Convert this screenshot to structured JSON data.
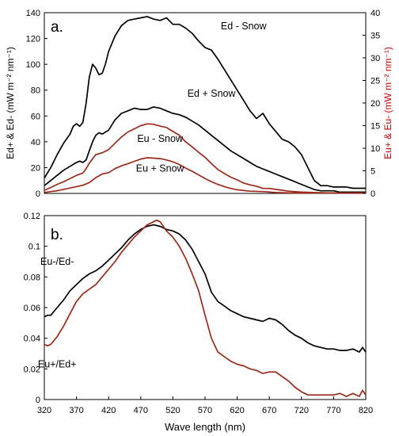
{
  "chart_data": [
    {
      "type": "line",
      "panel_label": "a.",
      "ylabel_left": "Ed+ & Ed- (mW m⁻² nm⁻¹)",
      "ylabel_right": "Eu+ & Eu- (mW m⁻² nm⁻¹)",
      "ylim_left": [
        0,
        140
      ],
      "yticks_left": [
        0,
        20,
        40,
        60,
        80,
        100,
        120,
        140
      ],
      "ylim_right": [
        0,
        40
      ],
      "yticks_right": [
        0,
        5,
        10,
        15,
        20,
        25,
        30,
        35,
        40
      ],
      "xlim": [
        320,
        820
      ],
      "grid": false,
      "series": [
        {
          "name": "Ed - Snow",
          "axis": "left",
          "color": "#000000",
          "x": [
            320,
            330,
            340,
            350,
            360,
            365,
            370,
            375,
            380,
            385,
            390,
            395,
            400,
            405,
            410,
            415,
            420,
            430,
            440,
            450,
            460,
            470,
            480,
            490,
            500,
            510,
            520,
            530,
            540,
            550,
            560,
            570,
            580,
            590,
            600,
            610,
            620,
            630,
            640,
            650,
            660,
            670,
            680,
            690,
            700,
            710,
            720,
            730,
            740,
            750,
            760,
            770,
            780,
            790,
            800,
            810,
            820
          ],
          "y": [
            12,
            20,
            30,
            39,
            46,
            52,
            54,
            52,
            55,
            70,
            90,
            100,
            97,
            92,
            93,
            100,
            110,
            122,
            130,
            134,
            135,
            136,
            137,
            135,
            134,
            136,
            131,
            131,
            128,
            124,
            118,
            113,
            111,
            104,
            96,
            88,
            80,
            72,
            64,
            58,
            62,
            54,
            48,
            42,
            40,
            36,
            30,
            20,
            10,
            6,
            6,
            5,
            5,
            5,
            4,
            4,
            4
          ]
        },
        {
          "name": "Ed + Snow",
          "axis": "left",
          "color": "#000000",
          "x": [
            320,
            330,
            340,
            350,
            360,
            370,
            375,
            380,
            385,
            390,
            395,
            400,
            405,
            410,
            420,
            430,
            440,
            450,
            460,
            470,
            480,
            490,
            500,
            510,
            520,
            530,
            540,
            550,
            560,
            570,
            580,
            590,
            600,
            610,
            620,
            630,
            640,
            650,
            660,
            670,
            680,
            690,
            700,
            710,
            720,
            730,
            740,
            750,
            760,
            770,
            780,
            790,
            800,
            810,
            820
          ],
          "y": [
            6,
            10,
            14,
            18,
            21,
            24,
            25,
            24,
            26,
            33,
            40,
            45,
            47,
            46,
            49,
            57,
            62,
            64,
            66,
            65,
            65,
            67,
            66,
            64,
            62,
            61,
            59,
            56,
            53,
            49,
            45,
            41,
            37,
            33,
            30,
            27,
            24,
            21,
            19,
            17,
            15,
            13,
            11,
            9,
            7,
            5,
            3,
            2,
            2,
            2,
            1,
            1,
            1,
            1,
            1
          ]
        },
        {
          "name": "Eu - Snow",
          "axis": "right",
          "color": "#9c2a1a",
          "x": [
            320,
            330,
            340,
            350,
            360,
            370,
            380,
            385,
            390,
            400,
            410,
            420,
            430,
            440,
            450,
            460,
            470,
            480,
            490,
            500,
            510,
            520,
            530,
            540,
            550,
            560,
            570,
            580,
            590,
            600,
            610,
            620,
            630,
            640,
            650,
            660,
            670,
            680,
            690,
            700,
            720,
            740,
            760,
            780,
            800,
            820
          ],
          "y": [
            0.7,
            1.3,
            2.0,
            2.6,
            3.3,
            4.0,
            4.5,
            5.5,
            6.7,
            8.6,
            9.0,
            9.7,
            11.1,
            12.5,
            13.6,
            14.3,
            15.0,
            15.4,
            15.3,
            14.9,
            14.6,
            13.7,
            12.9,
            11.4,
            10.3,
            9.1,
            8.0,
            6.6,
            5.3,
            4.4,
            3.6,
            3.0,
            2.3,
            1.9,
            1.6,
            1.1,
            1.1,
            0.9,
            0.7,
            0.5,
            0.3,
            0.2,
            0.1,
            0.1,
            0.1,
            0.1
          ]
        },
        {
          "name": "Eu + Snow",
          "axis": "right",
          "color": "#9c2a1a",
          "x": [
            320,
            330,
            340,
            350,
            360,
            370,
            380,
            390,
            400,
            410,
            420,
            430,
            440,
            450,
            460,
            470,
            480,
            490,
            500,
            510,
            520,
            530,
            540,
            550,
            560,
            570,
            580,
            590,
            600,
            610,
            620,
            640,
            660,
            680,
            700,
            720,
            740,
            760,
            780,
            800,
            820
          ],
          "y": [
            0.2,
            0.4,
            0.6,
            0.9,
            1.2,
            1.5,
            1.8,
            2.4,
            3.5,
            4.3,
            4.6,
            5.5,
            6.1,
            6.6,
            7.1,
            7.6,
            7.9,
            7.8,
            7.7,
            7.4,
            7.0,
            6.4,
            5.6,
            4.9,
            4.1,
            3.3,
            2.6,
            2.0,
            1.5,
            1.1,
            0.8,
            0.5,
            0.4,
            0.2,
            0.1,
            0.1,
            0.1,
            0.1,
            0.1,
            0.1,
            0.1
          ]
        }
      ],
      "annotations": [
        {
          "text": "Ed - Snow",
          "x": 630,
          "y": 127
        },
        {
          "text": "Ed + Snow",
          "x": 580,
          "y": 75
        },
        {
          "text": "Eu - Snow",
          "x": 500,
          "y": 40
        },
        {
          "text": "Eu + Snow",
          "x": 500,
          "y": 17
        }
      ]
    },
    {
      "type": "line",
      "panel_label": "b.",
      "xlabel": "Wave length (nm)",
      "xlim": [
        320,
        820
      ],
      "xticks": [
        320,
        370,
        420,
        470,
        520,
        570,
        620,
        670,
        720,
        770,
        820
      ],
      "ylim": [
        0,
        0.12
      ],
      "yticks": [
        0,
        0.02,
        0.04,
        0.06,
        0.08,
        0.1,
        0.12
      ],
      "ytick_labels": [
        "0",
        "0.02",
        "0.04",
        "0.06",
        "0.08",
        "0.1",
        "0.12"
      ],
      "grid": false,
      "series": [
        {
          "name": "Eu-/Ed-",
          "color": "#000000",
          "x": [
            320,
            325,
            330,
            340,
            350,
            360,
            370,
            380,
            390,
            400,
            410,
            420,
            430,
            440,
            450,
            460,
            470,
            480,
            490,
            500,
            510,
            520,
            530,
            540,
            550,
            560,
            570,
            580,
            590,
            600,
            610,
            620,
            630,
            640,
            650,
            660,
            670,
            680,
            690,
            700,
            710,
            720,
            730,
            740,
            750,
            760,
            770,
            780,
            790,
            800,
            810,
            815,
            820
          ],
          "y": [
            0.054,
            0.055,
            0.055,
            0.06,
            0.065,
            0.071,
            0.075,
            0.079,
            0.082,
            0.084,
            0.087,
            0.091,
            0.095,
            0.099,
            0.104,
            0.108,
            0.111,
            0.113,
            0.114,
            0.113,
            0.111,
            0.11,
            0.108,
            0.104,
            0.098,
            0.09,
            0.082,
            0.07,
            0.064,
            0.061,
            0.058,
            0.056,
            0.054,
            0.053,
            0.052,
            0.051,
            0.053,
            0.052,
            0.049,
            0.045,
            0.042,
            0.04,
            0.037,
            0.035,
            0.034,
            0.033,
            0.033,
            0.032,
            0.032,
            0.033,
            0.031,
            0.034,
            0.031
          ]
        },
        {
          "name": "Eu+/Ed+",
          "color": "#9c2a1a",
          "x": [
            320,
            325,
            330,
            340,
            350,
            360,
            370,
            380,
            390,
            400,
            410,
            420,
            430,
            440,
            450,
            460,
            470,
            480,
            490,
            495,
            500,
            510,
            520,
            530,
            540,
            550,
            560,
            570,
            580,
            590,
            600,
            610,
            620,
            630,
            640,
            650,
            660,
            670,
            680,
            690,
            700,
            710,
            720,
            730,
            740,
            750,
            760,
            770,
            780,
            790,
            800,
            810,
            815,
            820
          ],
          "y": [
            0.036,
            0.035,
            0.036,
            0.041,
            0.048,
            0.056,
            0.064,
            0.069,
            0.072,
            0.075,
            0.08,
            0.085,
            0.09,
            0.096,
            0.101,
            0.106,
            0.11,
            0.114,
            0.116,
            0.117,
            0.116,
            0.11,
            0.106,
            0.1,
            0.092,
            0.082,
            0.071,
            0.055,
            0.04,
            0.031,
            0.028,
            0.025,
            0.023,
            0.022,
            0.02,
            0.019,
            0.017,
            0.018,
            0.018,
            0.015,
            0.012,
            0.008,
            0.005,
            0.003,
            0.003,
            0.003,
            0.003,
            0.003,
            0.004,
            0.002,
            0.004,
            0.002,
            0.006,
            0.003
          ]
        }
      ],
      "annotations": [
        {
          "text": "Eu-/Ed-",
          "x": 340,
          "y": 0.088
        },
        {
          "text": "Eu+/Ed+",
          "x": 340,
          "y": 0.021
        }
      ]
    }
  ]
}
